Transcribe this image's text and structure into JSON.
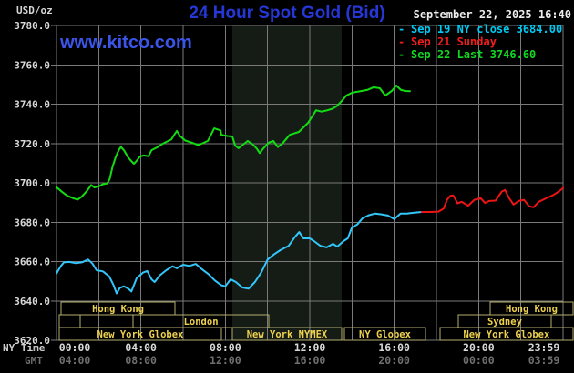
{
  "header": {
    "units": "USD/oz",
    "title": "24 Hour Spot Gold (Bid)",
    "datetime": "September 22, 2025 16:40",
    "watermark": "www.kitco.com"
  },
  "legend": {
    "entries": [
      {
        "dash": "-",
        "label": "Sep 19 NY close 3684.00",
        "color": "#00c9f2"
      },
      {
        "dash": "-",
        "label": "Sep 21 Sunday",
        "color": "#f21d1d"
      },
      {
        "dash": "-",
        "label": "Sep 22 Last 3746.60",
        "color": "#12d822"
      }
    ]
  },
  "axes": {
    "ny_time_label": "NY Time",
    "gmt_label": "GMT"
  },
  "colors": {
    "background": "#000000",
    "grid": "#7a7a7a",
    "band": "#151b15",
    "title_blue": "#2637d8",
    "kitco_blue": "#3a55e8",
    "axis_text": "#d9d9d9",
    "gmt_text": "#6f6f6f",
    "session_border": "#b4ae6e",
    "session_text": "#eed24f"
  },
  "chart_data": {
    "type": "line",
    "title": "24 Hour Spot Gold (Bid)",
    "ylabel": "USD/oz",
    "grid": true,
    "y_axis": {
      "min": 3620,
      "max": 3780,
      "step": 20,
      "tick_labels": [
        "3780.0",
        "3760.0",
        "3740.0",
        "3720.0",
        "3700.0",
        "3680.0",
        "3660.0",
        "3640.0",
        "3620.0"
      ]
    },
    "x_axis": {
      "label": "NY Time",
      "ticks_hours": [
        0,
        4,
        8,
        12,
        16,
        20,
        24
      ],
      "ny_labels": [
        "00:00",
        "04:00",
        "08:00",
        "12:00",
        "16:00",
        "20:00",
        "23:59"
      ],
      "gmt_labels": [
        "04:00",
        "08:00",
        "12:00",
        "16:00",
        "20:00",
        "00:00",
        "03:59"
      ],
      "gridline_every_hours": 2
    },
    "highlight_band": {
      "start": 8.33,
      "end": 13.51
    },
    "series": [
      {
        "name": "Sep 19 NY close",
        "close": 3684.0,
        "color": "#33c6fa",
        "points": [
          [
            0.0,
            3654.0
          ],
          [
            0.2,
            3657.6
          ],
          [
            0.35,
            3659.6
          ],
          [
            0.6,
            3659.8
          ],
          [
            0.9,
            3659.2
          ],
          [
            1.2,
            3659.6
          ],
          [
            1.5,
            3661.0
          ],
          [
            1.7,
            3659.0
          ],
          [
            1.9,
            3655.6
          ],
          [
            2.2,
            3655.0
          ],
          [
            2.5,
            3652.4
          ],
          [
            2.7,
            3648.0
          ],
          [
            2.85,
            3643.8
          ],
          [
            3.0,
            3646.6
          ],
          [
            3.2,
            3647.4
          ],
          [
            3.4,
            3646.2
          ],
          [
            3.55,
            3644.8
          ],
          [
            3.8,
            3651.6
          ],
          [
            4.1,
            3654.4
          ],
          [
            4.3,
            3655.2
          ],
          [
            4.5,
            3651.0
          ],
          [
            4.65,
            3649.6
          ],
          [
            4.9,
            3653.0
          ],
          [
            5.2,
            3655.6
          ],
          [
            5.5,
            3657.6
          ],
          [
            5.7,
            3656.6
          ],
          [
            6.0,
            3658.4
          ],
          [
            6.3,
            3657.8
          ],
          [
            6.6,
            3658.8
          ],
          [
            6.9,
            3656.0
          ],
          [
            7.2,
            3653.6
          ],
          [
            7.5,
            3650.4
          ],
          [
            7.8,
            3648.0
          ],
          [
            8.0,
            3647.4
          ],
          [
            8.25,
            3651.0
          ],
          [
            8.5,
            3649.6
          ],
          [
            8.8,
            3646.8
          ],
          [
            9.1,
            3646.2
          ],
          [
            9.4,
            3649.6
          ],
          [
            9.7,
            3654.4
          ],
          [
            10.0,
            3661.0
          ],
          [
            10.3,
            3663.6
          ],
          [
            10.6,
            3665.8
          ],
          [
            11.0,
            3668.0
          ],
          [
            11.3,
            3672.6
          ],
          [
            11.5,
            3675.0
          ],
          [
            11.7,
            3671.8
          ],
          [
            12.0,
            3671.8
          ],
          [
            12.2,
            3670.4
          ],
          [
            12.5,
            3668.0
          ],
          [
            12.8,
            3667.2
          ],
          [
            13.1,
            3669.0
          ],
          [
            13.3,
            3667.6
          ],
          [
            13.6,
            3670.4
          ],
          [
            13.8,
            3671.8
          ],
          [
            14.0,
            3677.4
          ],
          [
            14.25,
            3678.8
          ],
          [
            14.5,
            3682.0
          ],
          [
            14.8,
            3683.6
          ],
          [
            15.1,
            3684.4
          ],
          [
            15.4,
            3684.0
          ],
          [
            15.7,
            3683.4
          ],
          [
            16.0,
            3681.6
          ],
          [
            16.3,
            3684.4
          ],
          [
            16.6,
            3684.4
          ],
          [
            16.9,
            3684.8
          ],
          [
            17.3,
            3685.2
          ]
        ]
      },
      {
        "name": "Sep 21 Sunday",
        "color": "#ec1515",
        "points": [
          [
            17.3,
            3685.2
          ],
          [
            17.7,
            3685.2
          ],
          [
            18.1,
            3685.4
          ],
          [
            18.35,
            3687.0
          ],
          [
            18.5,
            3691.4
          ],
          [
            18.65,
            3693.4
          ],
          [
            18.8,
            3693.6
          ],
          [
            19.0,
            3689.6
          ],
          [
            19.2,
            3690.4
          ],
          [
            19.5,
            3688.4
          ],
          [
            19.8,
            3691.4
          ],
          [
            20.1,
            3692.2
          ],
          [
            20.3,
            3689.8
          ],
          [
            20.5,
            3690.8
          ],
          [
            20.8,
            3691.0
          ],
          [
            21.1,
            3695.6
          ],
          [
            21.25,
            3696.4
          ],
          [
            21.45,
            3692.2
          ],
          [
            21.65,
            3689.0
          ],
          [
            21.9,
            3690.8
          ],
          [
            22.15,
            3691.4
          ],
          [
            22.4,
            3688.0
          ],
          [
            22.6,
            3687.6
          ],
          [
            22.85,
            3690.4
          ],
          [
            23.2,
            3692.2
          ],
          [
            23.5,
            3693.6
          ],
          [
            23.8,
            3695.6
          ],
          [
            24.0,
            3697.4
          ]
        ]
      },
      {
        "name": "Sep 22",
        "last": 3746.6,
        "color": "#12dd12",
        "points": [
          [
            0.0,
            3697.8
          ],
          [
            0.25,
            3695.5
          ],
          [
            0.5,
            3693.5
          ],
          [
            0.8,
            3692.2
          ],
          [
            1.0,
            3691.5
          ],
          [
            1.2,
            3693.0
          ],
          [
            1.45,
            3696.0
          ],
          [
            1.64,
            3698.9
          ],
          [
            1.8,
            3697.7
          ],
          [
            2.0,
            3698.2
          ],
          [
            2.2,
            3699.3
          ],
          [
            2.4,
            3699.7
          ],
          [
            2.52,
            3702.0
          ],
          [
            2.65,
            3708.0
          ],
          [
            2.8,
            3713.0
          ],
          [
            2.95,
            3716.6
          ],
          [
            3.05,
            3718.3
          ],
          [
            3.2,
            3716.5
          ],
          [
            3.4,
            3712.8
          ],
          [
            3.55,
            3711.0
          ],
          [
            3.67,
            3709.7
          ],
          [
            3.8,
            3711.2
          ],
          [
            3.95,
            3713.4
          ],
          [
            4.15,
            3713.9
          ],
          [
            4.36,
            3713.5
          ],
          [
            4.5,
            3716.6
          ],
          [
            4.65,
            3717.4
          ],
          [
            4.8,
            3718.2
          ],
          [
            5.0,
            3719.7
          ],
          [
            5.2,
            3720.8
          ],
          [
            5.44,
            3722.0
          ],
          [
            5.6,
            3724.8
          ],
          [
            5.7,
            3726.4
          ],
          [
            5.85,
            3723.8
          ],
          [
            5.96,
            3722.8
          ],
          [
            6.1,
            3721.5
          ],
          [
            6.39,
            3720.5
          ],
          [
            6.73,
            3719.2
          ],
          [
            7.17,
            3721.3
          ],
          [
            7.47,
            3727.7
          ],
          [
            7.77,
            3726.7
          ],
          [
            7.81,
            3724.4
          ],
          [
            8.1,
            3723.8
          ],
          [
            8.33,
            3723.6
          ],
          [
            8.46,
            3719.0
          ],
          [
            8.63,
            3717.6
          ],
          [
            9.06,
            3721.3
          ],
          [
            9.3,
            3719.5
          ],
          [
            9.49,
            3717.4
          ],
          [
            9.63,
            3715.1
          ],
          [
            9.8,
            3717.5
          ],
          [
            10.06,
            3720.5
          ],
          [
            10.27,
            3721.3
          ],
          [
            10.49,
            3718.2
          ],
          [
            10.7,
            3720.0
          ],
          [
            11.05,
            3724.4
          ],
          [
            11.48,
            3725.9
          ],
          [
            11.92,
            3730.5
          ],
          [
            12.1,
            3733.5
          ],
          [
            12.3,
            3736.9
          ],
          [
            12.56,
            3736.2
          ],
          [
            12.8,
            3736.8
          ],
          [
            13.08,
            3737.7
          ],
          [
            13.29,
            3739.1
          ],
          [
            13.5,
            3741.5
          ],
          [
            13.73,
            3744.4
          ],
          [
            14.03,
            3745.9
          ],
          [
            14.37,
            3746.5
          ],
          [
            14.72,
            3747.2
          ],
          [
            15.02,
            3748.6
          ],
          [
            15.32,
            3748.1
          ],
          [
            15.58,
            3744.4
          ],
          [
            15.88,
            3746.7
          ],
          [
            16.1,
            3749.5
          ],
          [
            16.32,
            3747.2
          ],
          [
            16.53,
            3746.7
          ],
          [
            16.75,
            3746.6
          ]
        ]
      }
    ],
    "sessions": [
      {
        "row": 1,
        "label": "Hong Kong",
        "start": 0.22,
        "end": 5.61
      },
      {
        "row": 1,
        "label": "Hong Kong",
        "start": 20.55,
        "end": 24.47
      },
      {
        "row": 2,
        "label": "",
        "start": 0.13,
        "end": 1.12
      },
      {
        "row": 2,
        "label": "",
        "start": 1.12,
        "end": 3.63
      },
      {
        "row": 2,
        "label": "London",
        "start": 3.63,
        "end": 10.06
      },
      {
        "row": 2,
        "label": "Sydney",
        "start": 19.03,
        "end": 23.44
      },
      {
        "row": 3,
        "label": "New York Globex",
        "start": 0.13,
        "end": 7.81
      },
      {
        "row": 3,
        "label": "New York NYMEX",
        "start": 8.33,
        "end": 13.51
      },
      {
        "row": 3,
        "label": "NY Globex",
        "start": 13.64,
        "end": 17.48
      },
      {
        "row": 3,
        "label": "New York Globex",
        "start": 18.17,
        "end": 24.47
      }
    ]
  }
}
